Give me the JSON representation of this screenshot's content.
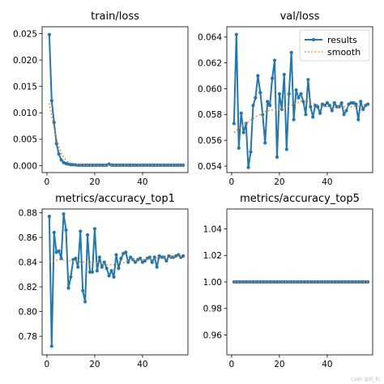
{
  "chart_data": [
    {
      "type": "line",
      "title": "train/loss",
      "xlim": [
        -2,
        59
      ],
      "ylim": [
        -0.0013,
        0.0263
      ],
      "xticks": [
        0,
        20,
        40
      ],
      "yticks": [
        0.0,
        0.005,
        0.01,
        0.015,
        0.02,
        0.025
      ],
      "ytick_labels": [
        "0.000",
        "0.005",
        "0.010",
        "0.015",
        "0.020",
        "0.025"
      ],
      "series": [
        {
          "name": "results",
          "style": "line-marker",
          "color": "#1f77b4",
          "x": [
            1,
            2,
            3,
            4,
            5,
            6,
            7,
            8,
            9,
            10,
            11,
            12,
            13,
            14,
            15,
            16,
            17,
            18,
            19,
            20,
            21,
            22,
            23,
            24,
            25,
            26,
            27,
            28,
            29,
            30,
            31,
            32,
            33,
            34,
            35,
            36,
            37,
            38,
            39,
            40,
            41,
            42,
            43,
            44,
            45,
            46,
            47,
            48,
            49,
            50,
            51,
            52,
            53,
            54,
            55,
            56,
            57
          ],
          "y": [
            0.0248,
            0.0123,
            0.0082,
            0.0042,
            0.0022,
            0.0011,
            0.0006,
            0.0004,
            0.0003,
            0.0002,
            0.0002,
            0.00015,
            0.0001,
            0.0001,
            0.0001,
            0.0001,
            0.0001,
            0.0001,
            0.0001,
            0.0001,
            0.0001,
            0.0001,
            0.0001,
            0.0001,
            0.0001,
            0.0003,
            0.0001,
            0.0001,
            0.0001,
            0.0001,
            0.0001,
            0.0001,
            0.0001,
            0.0001,
            0.0001,
            0.0001,
            0.0001,
            0.0001,
            0.0001,
            0.0001,
            0.0001,
            0.0001,
            0.0001,
            0.0001,
            0.0001,
            0.0001,
            0.0001,
            0.0001,
            0.0001,
            0.0001,
            0.0001,
            0.0001,
            0.0001,
            0.0001,
            0.0001,
            0.0001,
            0.0001
          ]
        },
        {
          "name": "smooth",
          "style": "dotted",
          "color": "#ff7f0e",
          "x": [
            1,
            2,
            3,
            4,
            5,
            6,
            7,
            8,
            9,
            10,
            12,
            14,
            16,
            18,
            20,
            25,
            30,
            40,
            50,
            57
          ],
          "y": [
            0.0118,
            0.0095,
            0.0072,
            0.0052,
            0.0036,
            0.0024,
            0.0016,
            0.001,
            0.0007,
            0.0005,
            0.0003,
            0.0002,
            0.00015,
            0.0001,
            0.0001,
            0.0001,
            0.0001,
            0.0001,
            0.0001,
            0.0001
          ]
        }
      ]
    },
    {
      "type": "line",
      "title": "val/loss",
      "xlim": [
        -2,
        59
      ],
      "ylim": [
        0.0535,
        0.0648
      ],
      "xticks": [
        0,
        20,
        40
      ],
      "yticks": [
        0.054,
        0.056,
        0.058,
        0.06,
        0.062,
        0.064
      ],
      "ytick_labels": [
        "0.054",
        "0.056",
        "0.058",
        "0.060",
        "0.062",
        "0.064"
      ],
      "legend": {
        "placement": "top-right",
        "entries": [
          "results",
          "smooth"
        ]
      },
      "series": [
        {
          "name": "results",
          "style": "line-marker",
          "color": "#1f77b4",
          "x": [
            1,
            2,
            3,
            4,
            5,
            6,
            7,
            8,
            9,
            10,
            11,
            12,
            13,
            14,
            15,
            16,
            17,
            18,
            19,
            20,
            21,
            22,
            23,
            24,
            25,
            26,
            27,
            28,
            29,
            30,
            31,
            32,
            33,
            34,
            35,
            36,
            37,
            38,
            39,
            40,
            41,
            42,
            43,
            44,
            45,
            46,
            47,
            48,
            49,
            50,
            51,
            52,
            53,
            54,
            55,
            56,
            57
          ],
          "y": [
            0.0573,
            0.0642,
            0.0554,
            0.0581,
            0.0566,
            0.0573,
            0.0539,
            0.0551,
            0.0587,
            0.0593,
            0.061,
            0.0597,
            0.058,
            0.0558,
            0.059,
            0.0587,
            0.0608,
            0.0622,
            0.0547,
            0.0596,
            0.0584,
            0.0611,
            0.0553,
            0.0596,
            0.0628,
            0.0576,
            0.0599,
            0.0593,
            0.0596,
            0.059,
            0.058,
            0.0607,
            0.0586,
            0.0578,
            0.0587,
            0.0586,
            0.0581,
            0.0588,
            0.0587,
            0.0589,
            0.0587,
            0.0583,
            0.0589,
            0.0586,
            0.0586,
            0.0589,
            0.058,
            0.0583,
            0.0588,
            0.0589,
            0.0589,
            0.0588,
            0.0576,
            0.059,
            0.0584,
            0.0587,
            0.0588
          ]
        },
        {
          "name": "smooth",
          "style": "dotted",
          "color": "#ff7f0e",
          "x": [
            1,
            5,
            10,
            15,
            20,
            25,
            30,
            35,
            40,
            45,
            50,
            57
          ],
          "y": [
            0.0566,
            0.0572,
            0.0578,
            0.0583,
            0.0584,
            0.0587,
            0.0591,
            0.0588,
            0.0586,
            0.0586,
            0.0586,
            0.0587
          ]
        }
      ]
    },
    {
      "type": "line",
      "title": "metrics/accuracy_top1",
      "xlim": [
        -2,
        59
      ],
      "ylim": [
        0.765,
        0.883
      ],
      "xticks": [
        0,
        20,
        40
      ],
      "yticks": [
        0.78,
        0.8,
        0.82,
        0.84,
        0.86,
        0.88
      ],
      "ytick_labels": [
        "0.78",
        "0.80",
        "0.82",
        "0.84",
        "0.86",
        "0.88"
      ],
      "series": [
        {
          "name": "results",
          "style": "line-marker",
          "color": "#1f77b4",
          "x": [
            1,
            2,
            3,
            4,
            5,
            6,
            7,
            8,
            9,
            10,
            11,
            12,
            13,
            14,
            15,
            16,
            17,
            18,
            19,
            20,
            21,
            22,
            23,
            24,
            25,
            26,
            27,
            28,
            29,
            30,
            31,
            32,
            33,
            34,
            35,
            36,
            37,
            38,
            39,
            40,
            41,
            42,
            43,
            44,
            45,
            46,
            47,
            48,
            49,
            50,
            51,
            52,
            53,
            54,
            55,
            56,
            57
          ],
          "y": [
            0.877,
            0.772,
            0.864,
            0.848,
            0.849,
            0.843,
            0.879,
            0.866,
            0.819,
            0.828,
            0.842,
            0.843,
            0.836,
            0.865,
            0.817,
            0.808,
            0.862,
            0.832,
            0.832,
            0.867,
            0.833,
            0.844,
            0.836,
            0.84,
            0.835,
            0.829,
            0.833,
            0.828,
            0.846,
            0.835,
            0.843,
            0.847,
            0.848,
            0.84,
            0.844,
            0.842,
            0.84,
            0.842,
            0.843,
            0.84,
            0.841,
            0.843,
            0.844,
            0.84,
            0.844,
            0.836,
            0.845,
            0.844,
            0.844,
            0.841,
            0.845,
            0.844,
            0.844,
            0.845,
            0.846,
            0.844,
            0.845
          ]
        },
        {
          "name": "smooth",
          "style": "dotted",
          "color": "#ff7f0e",
          "x": [
            1,
            5,
            10,
            15,
            20,
            25,
            30,
            35,
            40,
            45,
            50,
            57
          ],
          "y": [
            0.84,
            0.842,
            0.841,
            0.84,
            0.84,
            0.838,
            0.838,
            0.842,
            0.842,
            0.843,
            0.844,
            0.845
          ]
        }
      ]
    },
    {
      "type": "line",
      "title": "metrics/accuracy_top5",
      "xlim": [
        -2,
        59
      ],
      "ylim": [
        0.945,
        1.055
      ],
      "xticks": [
        0,
        20,
        40
      ],
      "yticks": [
        0.96,
        0.98,
        1.0,
        1.02,
        1.04
      ],
      "ytick_labels": [
        "0.96",
        "0.98",
        "1.00",
        "1.02",
        "1.04"
      ],
      "series": [
        {
          "name": "results",
          "style": "line-marker",
          "color": "#1f77b4",
          "x": [
            1,
            2,
            3,
            4,
            5,
            6,
            7,
            8,
            9,
            10,
            11,
            12,
            13,
            14,
            15,
            16,
            17,
            18,
            19,
            20,
            21,
            22,
            23,
            24,
            25,
            26,
            27,
            28,
            29,
            30,
            31,
            32,
            33,
            34,
            35,
            36,
            37,
            38,
            39,
            40,
            41,
            42,
            43,
            44,
            45,
            46,
            47,
            48,
            49,
            50,
            51,
            52,
            53,
            54,
            55,
            56,
            57
          ],
          "y": [
            1,
            1,
            1,
            1,
            1,
            1,
            1,
            1,
            1,
            1,
            1,
            1,
            1,
            1,
            1,
            1,
            1,
            1,
            1,
            1,
            1,
            1,
            1,
            1,
            1,
            1,
            1,
            1,
            1,
            1,
            1,
            1,
            1,
            1,
            1,
            1,
            1,
            1,
            1,
            1,
            1,
            1,
            1,
            1,
            1,
            1,
            1,
            1,
            1,
            1,
            1,
            1,
            1,
            1,
            1,
            1,
            1
          ]
        },
        {
          "name": "smooth",
          "style": "dotted",
          "color": "#ff7f0e",
          "x": [
            1,
            57
          ],
          "y": [
            1,
            1
          ]
        }
      ]
    }
  ],
  "watermark": "csdn @lll_llc"
}
